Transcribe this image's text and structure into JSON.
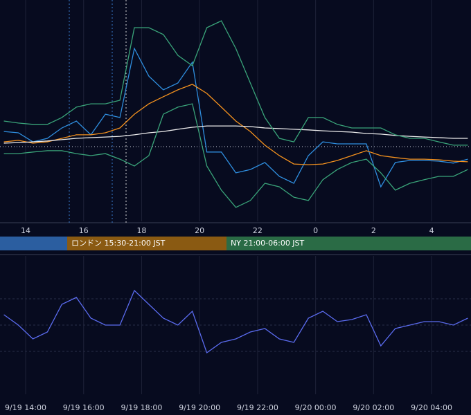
{
  "chart_data": [
    {
      "type": "line",
      "x": [
        13.25,
        13.75,
        14.25,
        14.75,
        15.25,
        15.75,
        16.25,
        16.75,
        17.25,
        17.75,
        18.25,
        18.75,
        19.25,
        19.75,
        20.25,
        20.75,
        21.25,
        21.75,
        22.25,
        22.75,
        23.25,
        23.75,
        24.25,
        24.75,
        25.25,
        25.75,
        26.25,
        26.75,
        27.25,
        27.75,
        28.25,
        28.75,
        29.25
      ],
      "xlim": [
        13.116,
        29.36
      ],
      "ylim": [
        0,
        100
      ],
      "xticks": [
        14,
        16,
        18,
        20,
        22,
        {
          "value": 24,
          "label": "0"
        },
        {
          "value": 26,
          "label": "2"
        },
        {
          "value": 28,
          "label": "4"
        }
      ],
      "grid": true,
      "series": [
        {
          "color": "#2f8fe0",
          "values": [
            40.6,
            40,
            35.9,
            37.5,
            42.2,
            45.3,
            39.1,
            48.4,
            46.9,
            78.1,
            65.6,
            59.4,
            62.5,
            71.9,
            31.3,
            31.3,
            21.9,
            23.4,
            26.6,
            20.3,
            17.2,
            29.7,
            35.9,
            35,
            35,
            35,
            15.6,
            26.6,
            27.5,
            27.5,
            27.2,
            26.3,
            28.1
          ]
        },
        {
          "color": "#f5921e",
          "values": [
            35.9,
            36.6,
            35.3,
            35.9,
            37.5,
            39.1,
            39.1,
            40,
            42.2,
            48.4,
            53.1,
            56.3,
            59.4,
            61.9,
            57.8,
            51.6,
            45.3,
            40.6,
            34.4,
            29.7,
            25.9,
            25.6,
            25.9,
            27.5,
            29.7,
            31.9,
            29.7,
            28.8,
            28.1,
            28.1,
            27.8,
            27.2,
            26.9
          ]
        },
        {
          "color": "#eeeeee",
          "values": [
            35.3,
            35.6,
            35.9,
            36.3,
            36.9,
            37.5,
            37.8,
            38.1,
            38.4,
            39.1,
            40,
            40.6,
            41.6,
            42.5,
            43.1,
            43.1,
            43.1,
            42.8,
            42.2,
            41.9,
            41.6,
            41.3,
            40.9,
            40.6,
            40.3,
            39.7,
            39.4,
            38.8,
            38.4,
            38.1,
            37.8,
            37.5,
            37.5
          ]
        },
        {
          "color": "#3aa57a",
          "values": [
            45.3,
            44.4,
            43.8,
            43.8,
            46.9,
            51.6,
            53.1,
            53.1,
            54.7,
            87.5,
            87.5,
            84.4,
            75,
            70.3,
            87.5,
            90.6,
            78.1,
            62.5,
            46.9,
            37.5,
            35.9,
            46.9,
            46.9,
            43.8,
            42.2,
            42.2,
            42.2,
            39.1,
            37.5,
            37.5,
            35.9,
            34.4,
            34.4
          ]
        },
        {
          "color": "#3aa57a",
          "values": [
            30.6,
            30.6,
            31.3,
            31.9,
            31.9,
            30.6,
            29.7,
            30.6,
            28.1,
            25,
            29.7,
            48.4,
            51.6,
            53.1,
            25,
            14.1,
            6.3,
            9.4,
            17.2,
            15.6,
            10.9,
            9.4,
            18.8,
            23.4,
            26.6,
            28.1,
            21.9,
            14.1,
            17.2,
            18.8,
            20.3,
            20.3,
            23.4
          ]
        }
      ]
    },
    {
      "type": "line",
      "x": [
        13.25,
        13.75,
        14.25,
        14.75,
        15.25,
        15.75,
        16.25,
        16.75,
        17.25,
        17.75,
        18.25,
        18.75,
        19.25,
        19.75,
        20.25,
        20.75,
        21.25,
        21.75,
        22.25,
        22.75,
        23.25,
        23.75,
        24.25,
        24.75,
        25.25,
        25.75,
        26.25,
        26.75,
        27.25,
        27.75,
        28.25,
        28.75,
        29.25
      ],
      "xlim": [
        13.116,
        29.36
      ],
      "ylim": [
        0,
        100
      ],
      "xticks": [
        {
          "value": 14,
          "label": "9/19 14:00"
        },
        {
          "value": 16,
          "label": "9/19 16:00"
        },
        {
          "value": 18,
          "label": "9/19 18:00"
        },
        {
          "value": 20,
          "label": "9/19 20:00"
        },
        {
          "value": 22,
          "label": "9/19 22:00"
        },
        {
          "value": 24,
          "label": "9/20 00:00"
        },
        {
          "value": 26,
          "label": "9/20 02:00"
        },
        {
          "value": 28,
          "label": "9/20 04:00"
        }
      ],
      "grid": true,
      "series": [
        {
          "color": "#5b6cf0",
          "values": [
            57.5,
            50,
            40,
            45,
            65,
            70,
            55,
            50,
            50,
            75,
            65,
            55,
            50,
            60,
            30,
            37.5,
            40,
            45,
            47.5,
            40,
            37.5,
            55,
            60,
            52.5,
            54,
            57.5,
            35,
            47.5,
            50,
            52.5,
            52.5,
            50,
            55
          ]
        }
      ]
    }
  ],
  "sessions": [
    "ロンドン 15:30-21:00 JST",
    "NY 21:00-06:00 JST"
  ]
}
